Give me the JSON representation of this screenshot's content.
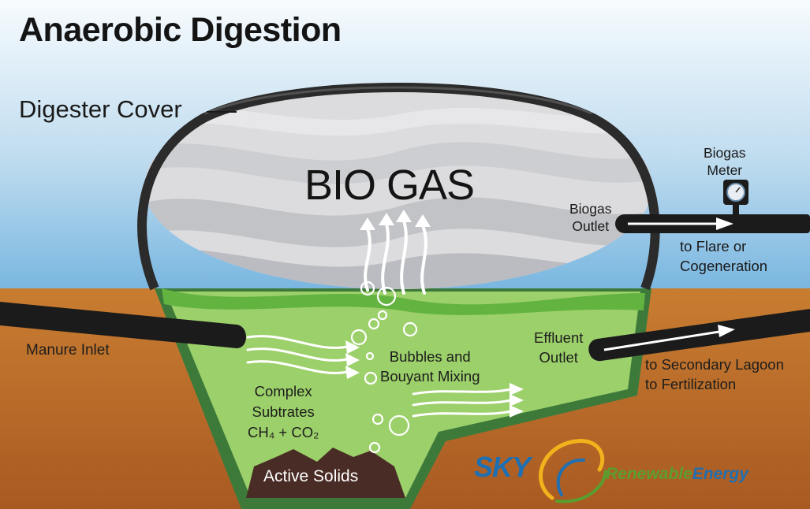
{
  "diagram": {
    "title": "Anaerobic Digestion",
    "cover_label": "Digester Cover",
    "gas_label": "BIO GAS",
    "meter_label": [
      "Biogas",
      "Meter"
    ],
    "outlet_label": [
      "Biogas",
      "Outlet"
    ],
    "flare_label": [
      "to Flare or",
      "Cogeneration"
    ],
    "inlet_label": "Manure Inlet",
    "bubbles_label": [
      "Bubbles and",
      "Bouyant Mixing"
    ],
    "effluent_label": [
      "Effluent",
      "Outlet"
    ],
    "lagoon_label": [
      "to Secondary Lagoon",
      "to Fertilization"
    ],
    "substrates_label": [
      "Complex",
      "Subtrates",
      "CH₄ + CO₂"
    ],
    "solids_label": "Active Solids"
  },
  "logo": {
    "brand": "SKY",
    "tagline_part1": "Renewable",
    "tagline_part2": "Energy"
  },
  "colors": {
    "sky": "#8ec3e4",
    "soil": "#b8682a",
    "slurry": "#9cd06a",
    "digester_wall": "#3d7a3a",
    "cover": "#2b2b2b",
    "gas": "#d6d6d8",
    "solids": "#4a2c26"
  }
}
